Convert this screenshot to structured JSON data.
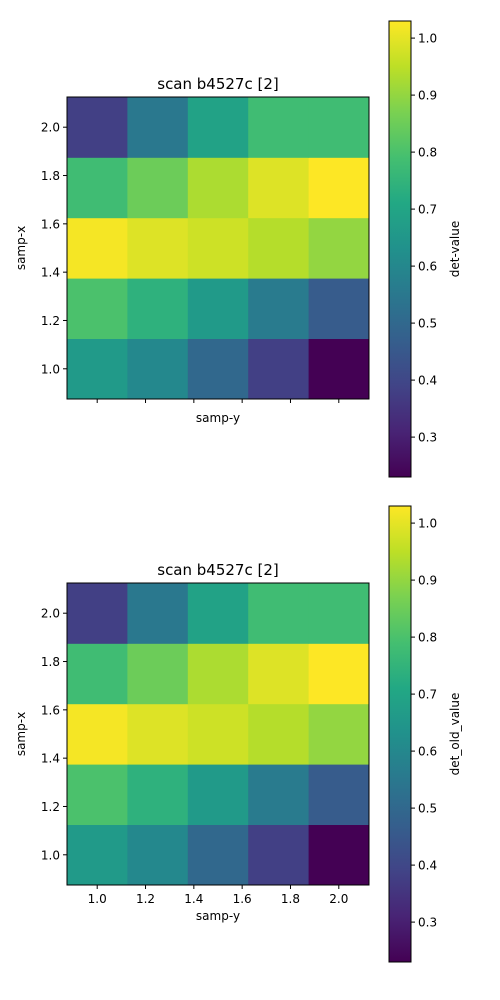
{
  "chart_data": [
    {
      "type": "heatmap",
      "title": "scan b4527c [2]",
      "xlabel": "samp-y",
      "ylabel": "samp-x",
      "colorbar_label": "det-value",
      "show_xtick_labels": false,
      "x": [
        1.0,
        1.25,
        1.5,
        1.75,
        2.0
      ],
      "y": [
        1.0,
        1.25,
        1.5,
        1.75,
        2.0
      ],
      "xlim": [
        0.875,
        2.125
      ],
      "ylim": [
        0.875,
        2.125
      ],
      "xticks": [
        "1.0",
        "1.2",
        "1.4",
        "1.6",
        "1.8",
        "2.0"
      ],
      "yticks": [
        "1.0",
        "1.2",
        "1.4",
        "1.6",
        "1.8",
        "2.0"
      ],
      "colormap": "viridis",
      "clim": [
        0.23,
        1.03
      ],
      "cbar_ticks": [
        "0.3",
        "0.4",
        "0.5",
        "0.6",
        "0.7",
        "0.8",
        "0.9",
        "1.0"
      ],
      "z": [
        [
          0.66,
          0.6,
          0.5,
          0.38,
          0.23
        ],
        [
          0.8,
          0.74,
          0.66,
          0.56,
          0.46
        ],
        [
          1.02,
          0.99,
          0.97,
          0.94,
          0.9
        ],
        [
          0.78,
          0.85,
          0.93,
          0.99,
          1.03
        ],
        [
          0.38,
          0.55,
          0.69,
          0.78,
          0.78
        ]
      ]
    },
    {
      "type": "heatmap",
      "title": "scan b4527c [2]",
      "xlabel": "samp-y",
      "ylabel": "samp-x",
      "colorbar_label": "det_old_value",
      "show_xtick_labels": true,
      "x": [
        1.0,
        1.25,
        1.5,
        1.75,
        2.0
      ],
      "y": [
        1.0,
        1.25,
        1.5,
        1.75,
        2.0
      ],
      "xlim": [
        0.875,
        2.125
      ],
      "ylim": [
        0.875,
        2.125
      ],
      "xticks": [
        "1.0",
        "1.2",
        "1.4",
        "1.6",
        "1.8",
        "2.0"
      ],
      "yticks": [
        "1.0",
        "1.2",
        "1.4",
        "1.6",
        "1.8",
        "2.0"
      ],
      "colormap": "viridis",
      "clim": [
        0.23,
        1.03
      ],
      "cbar_ticks": [
        "0.3",
        "0.4",
        "0.5",
        "0.6",
        "0.7",
        "0.8",
        "0.9",
        "1.0"
      ],
      "z": [
        [
          0.66,
          0.6,
          0.5,
          0.38,
          0.23
        ],
        [
          0.8,
          0.74,
          0.66,
          0.56,
          0.46
        ],
        [
          1.02,
          0.99,
          0.97,
          0.94,
          0.9
        ],
        [
          0.78,
          0.85,
          0.93,
          0.99,
          1.03
        ],
        [
          0.38,
          0.55,
          0.69,
          0.78,
          0.78
        ]
      ]
    }
  ]
}
